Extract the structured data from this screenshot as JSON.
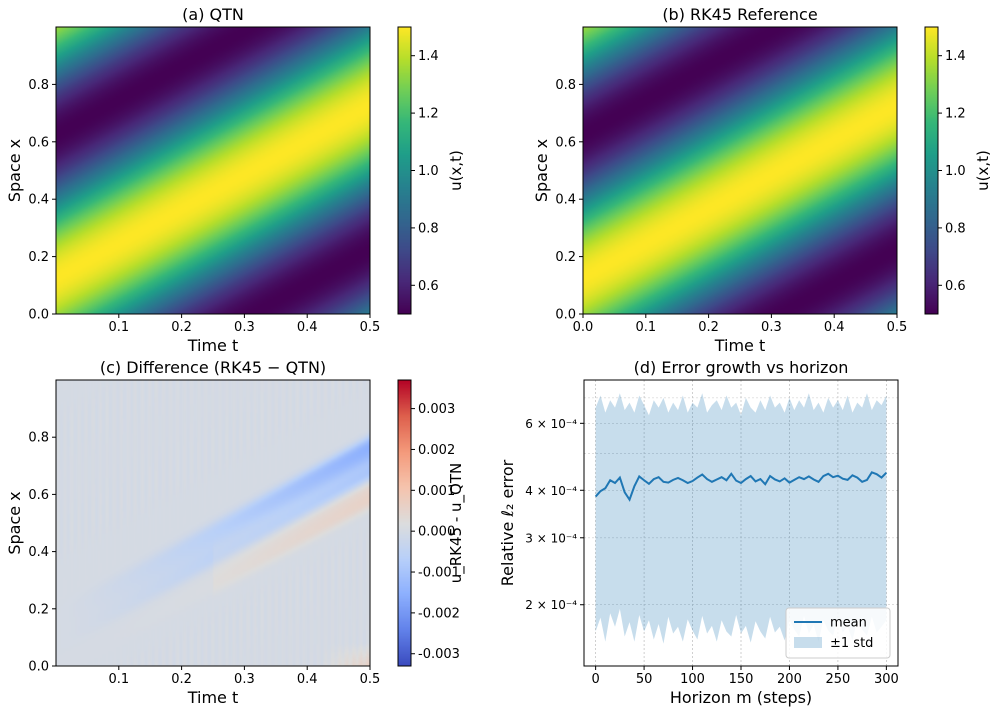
{
  "chart_data": [
    {
      "id": "a",
      "type": "heatmap",
      "title": "(a) QTN",
      "xlabel": "Time t",
      "ylabel": "Space x",
      "xlim": [
        0.0,
        0.5
      ],
      "ylim": [
        0.0,
        1.0
      ],
      "xticks": [
        "0.1",
        "0.2",
        "0.3",
        "0.4",
        "0.5"
      ],
      "yticks": [
        "0.0",
        "0.2",
        "0.4",
        "0.6",
        "0.8"
      ],
      "colormap": "viridis",
      "colorbar": {
        "label": "u(x,t)",
        "range": [
          0.5,
          1.5
        ],
        "ticks": [
          "0.6",
          "0.8",
          "1.0",
          "1.2",
          "1.4"
        ]
      },
      "field": {
        "expression": "u = 1 + 0.5*sin(2*pi*(x - 1.2*t) + pi/4)",
        "wave_speed": 1.2
      }
    },
    {
      "id": "b",
      "type": "heatmap",
      "title": "(b) RK45 Reference",
      "xlabel": "Time t",
      "ylabel": "Space x",
      "xlim": [
        0.0,
        0.5
      ],
      "ylim": [
        0.0,
        1.0
      ],
      "xticks": [
        "0.0",
        "0.1",
        "0.2",
        "0.3",
        "0.4",
        "0.5"
      ],
      "yticks": [
        "0.0",
        "0.2",
        "0.4",
        "0.6",
        "0.8"
      ],
      "colormap": "viridis",
      "colorbar": {
        "label": "u(x,t)",
        "range": [
          0.5,
          1.5
        ],
        "ticks": [
          "0.6",
          "0.8",
          "1.0",
          "1.2",
          "1.4"
        ]
      },
      "field": {
        "expression": "u = 1 + 0.5*sin(2*pi*(x - 1.2*t) + pi/4)",
        "wave_speed": 1.2
      }
    },
    {
      "id": "c",
      "type": "heatmap",
      "title": "(c) Difference (RK45 − QTN)",
      "xlabel": "Time t",
      "ylabel": "Space x",
      "xlim": [
        0.0,
        0.5
      ],
      "ylim": [
        0.0,
        1.0
      ],
      "xticks": [
        "0.1",
        "0.2",
        "0.3",
        "0.4",
        "0.5"
      ],
      "yticks": [
        "0.0",
        "0.2",
        "0.4",
        "0.6",
        "0.8"
      ],
      "colormap": "coolwarm",
      "colorbar": {
        "label": "u_RK45 - u_QTN",
        "range": [
          -0.0033,
          0.0037
        ],
        "ticks": [
          "-0.003",
          "-0.002",
          "-0.001",
          "0.000",
          "0.001",
          "0.002",
          "0.003"
        ]
      },
      "field": {
        "description": "blue band along wave crest reaching about -0.0015 near t=0.5, faint red stripes elsewhere",
        "min_value": -0.0016,
        "max_value": 0.0007
      }
    },
    {
      "id": "d",
      "type": "line",
      "title": "(d) Error growth vs horizon",
      "xlabel": "Horizon m (steps)",
      "ylabel": "Relative ℓ₂ error",
      "yscale": "log",
      "grid": true,
      "xlim": [
        -12,
        312
      ],
      "ylim": [
        0.000138,
        0.00078
      ],
      "xticks": [
        "0",
        "50",
        "100",
        "150",
        "200",
        "250",
        "300"
      ],
      "yticks": [
        {
          "value": 0.0002,
          "label": "2 × 10⁻⁴"
        },
        {
          "value": 0.0003,
          "label": "3 × 10⁻⁴"
        },
        {
          "value": 0.0004,
          "label": "4 × 10⁻⁴"
        },
        {
          "value": 0.0006,
          "label": "6 × 10⁻⁴"
        }
      ],
      "legend": {
        "placement": "lower-right",
        "entries": [
          "mean",
          "±1 std"
        ]
      },
      "series": [
        {
          "name": "mean",
          "kind": "line",
          "color": "#1f77b4",
          "x": [
            0,
            5,
            10,
            15,
            20,
            25,
            30,
            35,
            40,
            45,
            50,
            55,
            60,
            65,
            70,
            75,
            80,
            85,
            90,
            95,
            100,
            105,
            110,
            115,
            120,
            125,
            130,
            135,
            140,
            145,
            150,
            155,
            160,
            165,
            170,
            175,
            180,
            185,
            190,
            195,
            200,
            205,
            210,
            215,
            220,
            225,
            230,
            235,
            240,
            245,
            250,
            255,
            260,
            265,
            270,
            275,
            280,
            285,
            290,
            295,
            300
          ],
          "y": [
            0.000385,
            0.000398,
            0.000405,
            0.000425,
            0.000418,
            0.000432,
            0.000395,
            0.000378,
            0.00041,
            0.000435,
            0.000425,
            0.000416,
            0.000428,
            0.000433,
            0.000421,
            0.000419,
            0.000426,
            0.000431,
            0.000425,
            0.000418,
            0.000423,
            0.000432,
            0.00044,
            0.000428,
            0.000421,
            0.000427,
            0.000433,
            0.000425,
            0.000442,
            0.000424,
            0.000418,
            0.000428,
            0.000436,
            0.000422,
            0.000428,
            0.000415,
            0.000436,
            0.000427,
            0.000422,
            0.00043,
            0.000419,
            0.000426,
            0.000433,
            0.000428,
            0.000435,
            0.000427,
            0.000421,
            0.000436,
            0.000442,
            0.000433,
            0.000437,
            0.000429,
            0.000426,
            0.000438,
            0.000432,
            0.000421,
            0.000426,
            0.000446,
            0.000441,
            0.000432,
            0.000445
          ]
        },
        {
          "name": "±1 std",
          "kind": "band",
          "color": "#1f77b4",
          "opacity": 0.25,
          "x": [
            0,
            5,
            10,
            15,
            20,
            25,
            30,
            35,
            40,
            45,
            50,
            55,
            60,
            65,
            70,
            75,
            80,
            85,
            90,
            95,
            100,
            105,
            110,
            115,
            120,
            125,
            130,
            135,
            140,
            145,
            150,
            155,
            160,
            165,
            170,
            175,
            180,
            185,
            190,
            195,
            200,
            205,
            210,
            215,
            220,
            225,
            230,
            235,
            240,
            245,
            250,
            255,
            260,
            265,
            270,
            275,
            280,
            285,
            290,
            295,
            300
          ],
          "upper": [
            0.00066,
            0.00071,
            0.00064,
            0.00069,
            0.00066,
            0.00072,
            0.00065,
            0.00068,
            0.00064,
            0.00071,
            0.00067,
            0.00063,
            0.00069,
            0.00066,
            0.0007,
            0.00064,
            0.00068,
            0.00065,
            0.00071,
            0.00064,
            0.00068,
            0.00066,
            0.00072,
            0.00064,
            0.00067,
            0.00069,
            0.00065,
            0.00071,
            0.00066,
            0.00068,
            0.00063,
            0.0007,
            0.00066,
            0.00064,
            0.00069,
            0.00065,
            0.00071,
            0.00066,
            0.00068,
            0.00064,
            0.0007,
            0.00065,
            0.00069,
            0.00066,
            0.00072,
            0.00065,
            0.00068,
            0.00064,
            0.0007,
            0.00066,
            0.00069,
            0.00065,
            0.00071,
            0.00064,
            0.00068,
            0.00066,
            0.00072,
            0.00065,
            0.00069,
            0.00067,
            0.00071
          ],
          "lower": [
            0.00017,
            0.000185,
            0.00016,
            0.00019,
            0.000175,
            0.000195,
            0.000165,
            0.00018,
            0.00016,
            0.000188,
            0.00017,
            0.000182,
            0.000162,
            0.000178,
            0.000158,
            0.000186,
            0.000168,
            0.000175,
            0.00016,
            0.000183,
            0.000171,
            0.000162,
            0.000187,
            0.000168,
            0.000176,
            0.00016,
            0.000182,
            0.00017,
            0.000165,
            0.000188,
            0.000168,
            0.000176,
            0.000159,
            0.000181,
            0.00017,
            0.000163,
            0.000186,
            0.000169,
            0.000175,
            0.000161,
            0.000183,
            0.000172,
            0.000165,
            0.000187,
            0.000168,
            0.000177,
            0.00016,
            0.000182,
            0.000171,
            0.000166,
            0.000185,
            0.000169,
            0.000176,
            0.000161,
            0.000183,
            0.000172,
            0.000166,
            0.000186,
            0.000169,
            0.000175,
            0.000182
          ]
        }
      ]
    }
  ]
}
